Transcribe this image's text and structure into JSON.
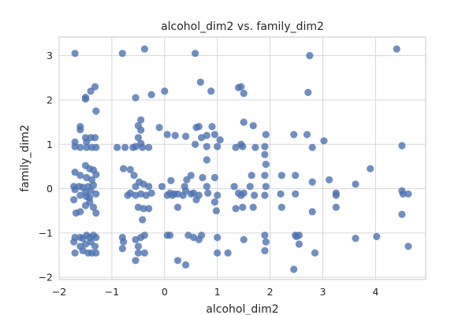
{
  "chart_data": {
    "type": "scatter",
    "title": "alcohol_dim2 vs. family_dim2",
    "xlabel": "alcohol_dim2",
    "ylabel": "family_dim2",
    "xlim": [
      -2.0,
      4.95
    ],
    "ylim": [
      -2.05,
      3.42
    ],
    "xticks": [
      -2,
      -1,
      0,
      1,
      2,
      3,
      4
    ],
    "yticks": [
      -2,
      -1,
      0,
      1,
      2,
      3
    ],
    "grid": true,
    "marker_color": "#4C72B0",
    "points": [
      [
        -1.7,
        3.05
      ],
      [
        -1.6,
        1.4
      ],
      [
        -1.6,
        1.33
      ],
      [
        -1.7,
        1.05
      ],
      [
        -1.7,
        0.95
      ],
      [
        -1.5,
        2.02
      ],
      [
        -1.5,
        2.06
      ],
      [
        -1.4,
        2.2
      ],
      [
        -1.32,
        2.3
      ],
      [
        -1.3,
        1.75
      ],
      [
        -1.5,
        1.15
      ],
      [
        -1.48,
        1.05
      ],
      [
        -1.4,
        1.15
      ],
      [
        -1.32,
        1.15
      ],
      [
        -1.48,
        0.93
      ],
      [
        -1.38,
        0.93
      ],
      [
        -1.3,
        0.93
      ],
      [
        -1.6,
        0.93
      ],
      [
        -1.7,
        0.37
      ],
      [
        -1.6,
        0.3
      ],
      [
        -1.5,
        0.52
      ],
      [
        -1.42,
        0.45
      ],
      [
        -1.35,
        0.42
      ],
      [
        -1.3,
        0.32
      ],
      [
        -1.48,
        0.25
      ],
      [
        -1.38,
        0.2
      ],
      [
        -1.72,
        0.05
      ],
      [
        -1.7,
        -0.02
      ],
      [
        -1.62,
        0.05
      ],
      [
        -1.55,
        0.03
      ],
      [
        -1.5,
        -0.08
      ],
      [
        -1.45,
        0.05
      ],
      [
        -1.4,
        -0.05
      ],
      [
        -1.35,
        0.08
      ],
      [
        -1.3,
        -0.12
      ],
      [
        -1.6,
        -0.15
      ],
      [
        -1.48,
        -0.18
      ],
      [
        -1.42,
        -0.2
      ],
      [
        -1.72,
        -0.25
      ],
      [
        -1.68,
        -0.55
      ],
      [
        -1.6,
        -0.52
      ],
      [
        -1.5,
        -0.38
      ],
      [
        -1.42,
        -0.3
      ],
      [
        -1.35,
        -0.42
      ],
      [
        -1.3,
        -0.55
      ],
      [
        -1.7,
        -1.1
      ],
      [
        -1.72,
        -1.2
      ],
      [
        -1.6,
        -1.1
      ],
      [
        -1.55,
        -1.12
      ],
      [
        -1.48,
        -1.05
      ],
      [
        -1.42,
        -1.1
      ],
      [
        -1.35,
        -1.05
      ],
      [
        -1.3,
        -1.1
      ],
      [
        -1.7,
        -1.45
      ],
      [
        -1.6,
        -1.3
      ],
      [
        -1.5,
        -1.25
      ],
      [
        -1.45,
        -1.45
      ],
      [
        -1.38,
        -1.45
      ],
      [
        -1.32,
        -1.3
      ],
      [
        -1.3,
        -1.45
      ],
      [
        -1.55,
        -1.4
      ],
      [
        -1.4,
        -1.2
      ],
      [
        -0.8,
        3.05
      ],
      [
        -0.38,
        3.15
      ],
      [
        -0.55,
        2.05
      ],
      [
        -0.25,
        2.12
      ],
      [
        -0.45,
        1.55
      ],
      [
        -0.5,
        1.42
      ],
      [
        -0.45,
        1.32
      ],
      [
        -0.5,
        1.15
      ],
      [
        -0.45,
        1.02
      ],
      [
        -0.55,
        0.95
      ],
      [
        -0.9,
        0.93
      ],
      [
        -0.75,
        0.93
      ],
      [
        -0.6,
        0.93
      ],
      [
        -0.42,
        0.93
      ],
      [
        -0.3,
        0.93
      ],
      [
        -0.78,
        0.45
      ],
      [
        -0.65,
        0.43
      ],
      [
        -0.58,
        0.3
      ],
      [
        -0.48,
        0.15
      ],
      [
        -0.4,
        0.1
      ],
      [
        -0.3,
        0.05
      ],
      [
        -0.55,
        0.05
      ],
      [
        -0.65,
        -0.1
      ],
      [
        -0.55,
        -0.15
      ],
      [
        -0.45,
        -0.12
      ],
      [
        -0.35,
        -0.15
      ],
      [
        -0.25,
        -0.1
      ],
      [
        -0.7,
        -0.15
      ],
      [
        -0.5,
        -0.42
      ],
      [
        -0.4,
        -0.45
      ],
      [
        -0.3,
        -0.45
      ],
      [
        -0.42,
        -0.7
      ],
      [
        -0.8,
        -1.1
      ],
      [
        -0.78,
        -1.2
      ],
      [
        -0.55,
        -1.15
      ],
      [
        -0.45,
        -1.1
      ],
      [
        -0.38,
        -1.05
      ],
      [
        -0.5,
        -1.3
      ],
      [
        -0.8,
        -1.35
      ],
      [
        -0.5,
        -1.45
      ],
      [
        -0.38,
        -1.45
      ],
      [
        -0.55,
        -1.62
      ],
      [
        -0.1,
        1.38
      ],
      [
        -0.05,
        0.05
      ],
      [
        0.0,
        2.2
      ],
      [
        0.05,
        -0.15
      ],
      [
        0.1,
        -0.1
      ],
      [
        0.12,
        0.18
      ],
      [
        0.15,
        -0.15
      ],
      [
        0.18,
        -0.12
      ],
      [
        0.05,
        1.22
      ],
      [
        0.05,
        -1.05
      ],
      [
        0.1,
        -1.05
      ],
      [
        0.25,
        -0.12
      ],
      [
        0.25,
        -0.42
      ],
      [
        0.35,
        -0.15
      ],
      [
        0.2,
        1.2
      ],
      [
        0.4,
        1.18
      ],
      [
        0.38,
        0.05
      ],
      [
        0.4,
        -0.05
      ],
      [
        0.5,
        -0.12
      ],
      [
        0.45,
        -1.05
      ],
      [
        0.55,
        -1.1
      ],
      [
        0.65,
        -1.15
      ],
      [
        0.7,
        -1.05
      ],
      [
        0.25,
        -1.62
      ],
      [
        0.4,
        -1.72
      ],
      [
        0.42,
        0.2
      ],
      [
        0.5,
        0.3
      ],
      [
        0.58,
        3.05
      ],
      [
        0.6,
        1.38
      ],
      [
        0.58,
        1.0
      ],
      [
        0.65,
        1.4
      ],
      [
        0.68,
        2.4
      ],
      [
        0.55,
        -0.1
      ],
      [
        0.6,
        -0.25
      ],
      [
        0.65,
        -0.15
      ],
      [
        0.72,
        0.25
      ],
      [
        0.7,
        1.15
      ],
      [
        0.8,
        0.65
      ],
      [
        0.8,
        0.95
      ],
      [
        0.8,
        1.2
      ],
      [
        0.8,
        0.05
      ],
      [
        0.82,
        -0.1
      ],
      [
        0.88,
        2.2
      ],
      [
        0.9,
        1.4
      ],
      [
        0.95,
        1.22
      ],
      [
        0.95,
        0.25
      ],
      [
        1.0,
        -0.15
      ],
      [
        0.95,
        -0.3
      ],
      [
        0.98,
        -0.5
      ],
      [
        1.0,
        0.95
      ],
      [
        1.05,
        1.1
      ],
      [
        1.0,
        -1.1
      ],
      [
        1.0,
        -1.45
      ],
      [
        1.2,
        -1.45
      ],
      [
        1.4,
        2.28
      ],
      [
        1.45,
        2.3
      ],
      [
        1.5,
        2.15
      ],
      [
        1.5,
        1.5
      ],
      [
        1.45,
        1.0
      ],
      [
        1.48,
        0.95
      ],
      [
        1.35,
        0.93
      ],
      [
        1.32,
        0.05
      ],
      [
        1.4,
        -0.1
      ],
      [
        1.45,
        -0.15
      ],
      [
        1.5,
        -0.1
      ],
      [
        1.48,
        -0.42
      ],
      [
        1.35,
        -0.45
      ],
      [
        1.5,
        -1.15
      ],
      [
        1.68,
        1.42
      ],
      [
        1.65,
        0.3
      ],
      [
        1.62,
        0.05
      ],
      [
        1.72,
        0.93
      ],
      [
        1.7,
        -0.15
      ],
      [
        1.68,
        -0.42
      ],
      [
        1.92,
        1.22
      ],
      [
        1.9,
        0.95
      ],
      [
        1.9,
        0.77
      ],
      [
        1.92,
        0.55
      ],
      [
        1.9,
        0.3
      ],
      [
        1.92,
        0.05
      ],
      [
        1.9,
        -0.15
      ],
      [
        1.9,
        -1.05
      ],
      [
        1.92,
        -1.2
      ],
      [
        1.9,
        -1.4
      ],
      [
        2.22,
        0.3
      ],
      [
        2.2,
        -0.12
      ],
      [
        2.22,
        -0.42
      ],
      [
        2.45,
        1.22
      ],
      [
        2.48,
        0.3
      ],
      [
        2.48,
        -0.12
      ],
      [
        2.48,
        -1.05
      ],
      [
        2.5,
        -1.08
      ],
      [
        2.55,
        -1.05
      ],
      [
        2.45,
        -1.82
      ],
      [
        2.55,
        -1.25
      ],
      [
        2.72,
        2.17
      ],
      [
        2.7,
        1.22
      ],
      [
        2.75,
        3.0
      ],
      [
        2.8,
        0.93
      ],
      [
        2.8,
        0.15
      ],
      [
        2.8,
        -0.52
      ],
      [
        2.85,
        -1.45
      ],
      [
        3.02,
        1.08
      ],
      [
        3.12,
        0.2
      ],
      [
        3.25,
        -0.1
      ],
      [
        3.25,
        -0.15
      ],
      [
        3.25,
        -0.42
      ],
      [
        3.62,
        0.1
      ],
      [
        3.62,
        -1.12
      ],
      [
        3.9,
        0.45
      ],
      [
        4.02,
        -1.08
      ],
      [
        4.4,
        3.15
      ],
      [
        4.5,
        0.97
      ],
      [
        4.5,
        -0.05
      ],
      [
        4.52,
        -0.12
      ],
      [
        4.5,
        -0.58
      ],
      [
        4.62,
        -0.12
      ],
      [
        4.62,
        -1.3
      ]
    ]
  }
}
